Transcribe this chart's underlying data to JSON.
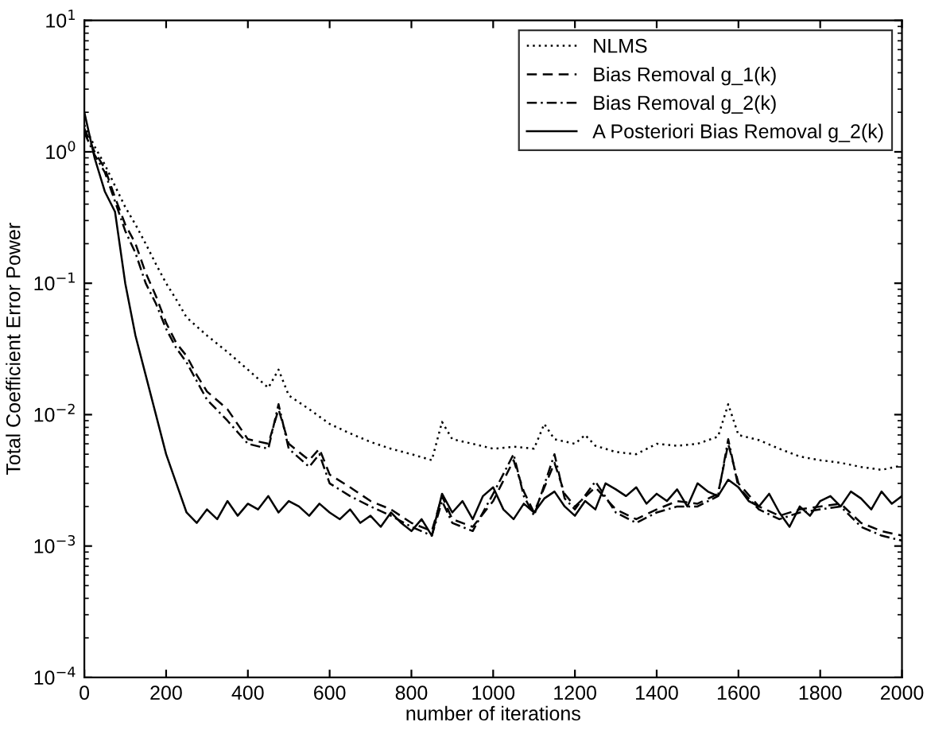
{
  "chart_data": {
    "type": "line",
    "xlabel": "number of iterations",
    "ylabel": "Total Coefficient Error Power",
    "log": "y",
    "xlim": [
      0,
      2000
    ],
    "xticks": [
      0,
      200,
      400,
      600,
      800,
      1000,
      1200,
      1400,
      1600,
      1800,
      2000
    ],
    "ylim": [
      0.0001,
      10
    ],
    "yticks": [
      {
        "value": 0.0001,
        "label": "10$^{−4}$"
      },
      {
        "value": 0.001,
        "label": "10$^{−3}$"
      },
      {
        "value": 0.01,
        "label": "10$^{−2}$"
      },
      {
        "value": 0.1,
        "label": "10$^{−1}$"
      },
      {
        "value": 1,
        "label": "10$^{0}$"
      },
      {
        "value": 10,
        "label": "10$^{1}$"
      }
    ],
    "grid": false,
    "legend": "top right",
    "marker": "none",
    "series": [
      {
        "name": "NLMS",
        "color": "#000000",
        "line_style": "dotted",
        "x": [
          0,
          25,
          50,
          75,
          100,
          125,
          150,
          175,
          200,
          225,
          250,
          300,
          350,
          400,
          450,
          475,
          500,
          550,
          600,
          650,
          700,
          750,
          800,
          850,
          875,
          900,
          950,
          1000,
          1050,
          1100,
          1125,
          1150,
          1200,
          1225,
          1250,
          1300,
          1350,
          1400,
          1450,
          1500,
          1550,
          1575,
          1600,
          1650,
          1700,
          1750,
          1800,
          1850,
          1900,
          1950,
          2000
        ],
        "values": [
          1.6,
          1.1,
          0.8,
          0.55,
          0.38,
          0.28,
          0.2,
          0.14,
          0.1,
          0.075,
          0.055,
          0.04,
          0.03,
          0.022,
          0.016,
          0.022,
          0.014,
          0.011,
          0.0085,
          0.0072,
          0.0062,
          0.0055,
          0.005,
          0.0045,
          0.0088,
          0.0065,
          0.006,
          0.0055,
          0.0057,
          0.0055,
          0.0085,
          0.0065,
          0.006,
          0.007,
          0.0058,
          0.0052,
          0.005,
          0.006,
          0.0058,
          0.006,
          0.0068,
          0.012,
          0.007,
          0.0064,
          0.0055,
          0.0048,
          0.0045,
          0.0043,
          0.004,
          0.0038,
          0.0041
        ]
      },
      {
        "name": "Bias Removal g_1(k)",
        "color": "#000000",
        "line_style": "dashed",
        "x": [
          0,
          25,
          50,
          75,
          100,
          125,
          150,
          175,
          200,
          225,
          250,
          275,
          300,
          350,
          400,
          450,
          475,
          500,
          550,
          575,
          600,
          650,
          700,
          750,
          800,
          850,
          875,
          900,
          950,
          1000,
          1050,
          1075,
          1100,
          1150,
          1175,
          1200,
          1250,
          1300,
          1350,
          1400,
          1450,
          1500,
          1550,
          1575,
          1600,
          1650,
          1700,
          1750,
          1800,
          1850,
          1900,
          1950,
          2000
        ],
        "values": [
          1.5,
          1.0,
          0.75,
          0.45,
          0.28,
          0.2,
          0.12,
          0.08,
          0.05,
          0.035,
          0.028,
          0.02,
          0.015,
          0.011,
          0.0065,
          0.006,
          0.011,
          0.006,
          0.0045,
          0.0055,
          0.0035,
          0.0028,
          0.0022,
          0.0019,
          0.0015,
          0.0013,
          0.0024,
          0.0016,
          0.0014,
          0.0022,
          0.0045,
          0.0026,
          0.0018,
          0.0043,
          0.0025,
          0.002,
          0.0028,
          0.0019,
          0.0016,
          0.0019,
          0.0022,
          0.0021,
          0.0025,
          0.006,
          0.003,
          0.002,
          0.0017,
          0.0019,
          0.002,
          0.0021,
          0.0015,
          0.0013,
          0.0012
        ]
      },
      {
        "name": "Bias Removal g_2(k)",
        "color": "#000000",
        "line_style": "dashdot",
        "x": [
          0,
          25,
          50,
          75,
          100,
          125,
          150,
          175,
          200,
          225,
          250,
          275,
          300,
          350,
          400,
          450,
          475,
          500,
          550,
          575,
          600,
          650,
          700,
          750,
          800,
          850,
          875,
          900,
          950,
          1000,
          1050,
          1075,
          1100,
          1150,
          1175,
          1200,
          1250,
          1300,
          1350,
          1400,
          1450,
          1500,
          1550,
          1575,
          1600,
          1650,
          1700,
          1750,
          1800,
          1850,
          1900,
          1950,
          2000
        ],
        "values": [
          1.4,
          0.95,
          0.7,
          0.42,
          0.25,
          0.17,
          0.1,
          0.07,
          0.045,
          0.032,
          0.025,
          0.018,
          0.013,
          0.009,
          0.006,
          0.0055,
          0.012,
          0.0055,
          0.004,
          0.005,
          0.003,
          0.0024,
          0.002,
          0.0017,
          0.0014,
          0.0012,
          0.0022,
          0.0015,
          0.0013,
          0.0025,
          0.005,
          0.0024,
          0.0017,
          0.005,
          0.0023,
          0.0019,
          0.0031,
          0.0018,
          0.0015,
          0.0018,
          0.002,
          0.002,
          0.0024,
          0.0065,
          0.0028,
          0.0019,
          0.0016,
          0.0018,
          0.0019,
          0.002,
          0.0014,
          0.0012,
          0.0011
        ]
      },
      {
        "name": "A Posteriori Bias Removal g_2(k)",
        "color": "#000000",
        "line_style": "solid",
        "x": [
          0,
          25,
          50,
          75,
          100,
          125,
          150,
          175,
          200,
          225,
          250,
          275,
          300,
          325,
          350,
          375,
          400,
          425,
          450,
          475,
          500,
          525,
          550,
          575,
          600,
          625,
          650,
          675,
          700,
          725,
          750,
          775,
          800,
          825,
          850,
          875,
          900,
          925,
          950,
          975,
          1000,
          1025,
          1050,
          1075,
          1100,
          1125,
          1150,
          1175,
          1200,
          1225,
          1250,
          1275,
          1300,
          1325,
          1350,
          1375,
          1400,
          1425,
          1450,
          1475,
          1500,
          1525,
          1550,
          1575,
          1600,
          1625,
          1650,
          1675,
          1700,
          1725,
          1750,
          1775,
          1800,
          1825,
          1850,
          1875,
          1900,
          1925,
          1950,
          1975,
          2000
        ],
        "values": [
          2.0,
          0.9,
          0.5,
          0.35,
          0.1,
          0.04,
          0.02,
          0.01,
          0.005,
          0.003,
          0.0018,
          0.0015,
          0.0019,
          0.0016,
          0.0022,
          0.0017,
          0.0021,
          0.0019,
          0.0024,
          0.0018,
          0.0022,
          0.002,
          0.0017,
          0.0021,
          0.0018,
          0.0016,
          0.0019,
          0.0015,
          0.0017,
          0.0014,
          0.0018,
          0.0015,
          0.0013,
          0.0016,
          0.0012,
          0.0025,
          0.0018,
          0.0022,
          0.0016,
          0.0024,
          0.0028,
          0.0019,
          0.0016,
          0.0021,
          0.0018,
          0.0023,
          0.0026,
          0.002,
          0.0017,
          0.0022,
          0.0019,
          0.003,
          0.0027,
          0.0024,
          0.0028,
          0.0021,
          0.0025,
          0.0022,
          0.0027,
          0.002,
          0.003,
          0.0026,
          0.0024,
          0.0032,
          0.0028,
          0.0022,
          0.002,
          0.0025,
          0.0018,
          0.0014,
          0.002,
          0.0017,
          0.0022,
          0.0024,
          0.002,
          0.0026,
          0.0023,
          0.0019,
          0.0026,
          0.0021,
          0.0024
        ]
      }
    ]
  }
}
